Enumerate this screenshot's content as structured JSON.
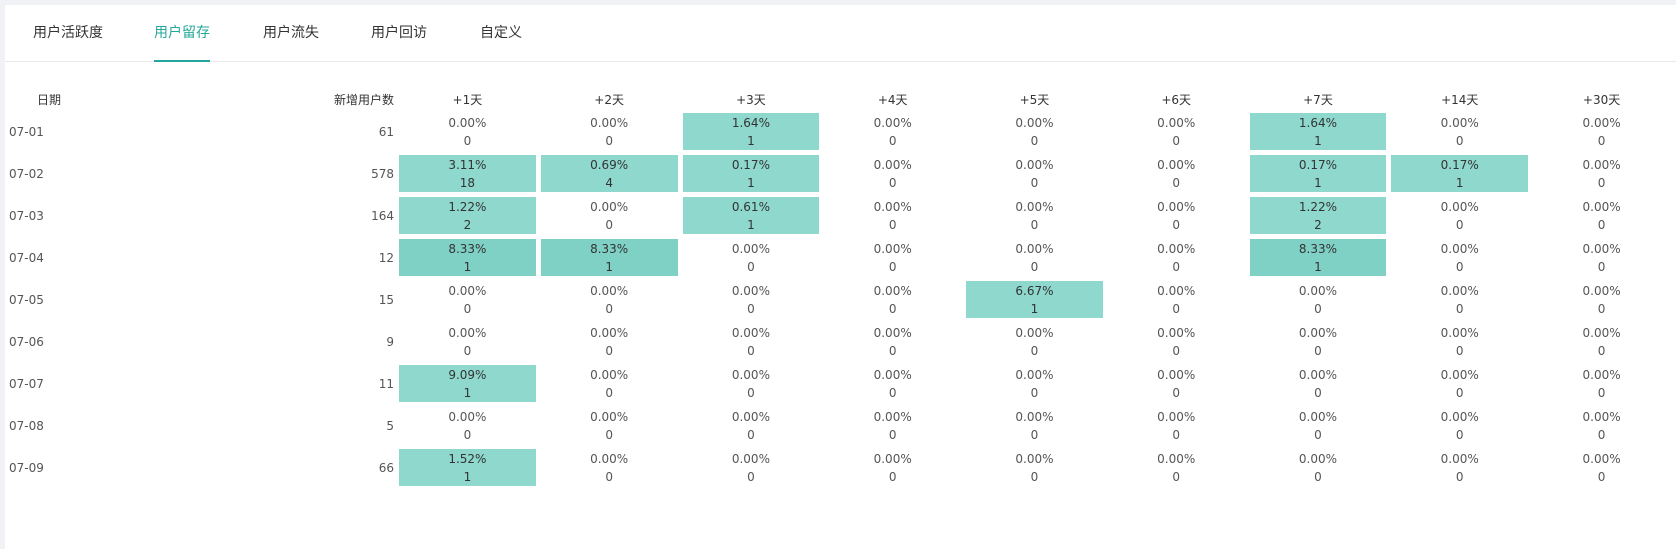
{
  "tabs": [
    {
      "label": "用户活跃度"
    },
    {
      "label": "用户留存"
    },
    {
      "label": "用户流失"
    },
    {
      "label": "用户回访"
    },
    {
      "label": "自定义"
    }
  ],
  "active_tab": 1,
  "table": {
    "headers": {
      "date": "日期",
      "new_users": "新增用户数",
      "days": [
        "+1天",
        "+2天",
        "+3天",
        "+4天",
        "+5天",
        "+6天",
        "+7天",
        "+14天",
        "+30天"
      ]
    },
    "rows": [
      {
        "date": "07-01",
        "new_users": "61",
        "cells": [
          {
            "pct": "0.00%",
            "count": "0"
          },
          {
            "pct": "0.00%",
            "count": "0"
          },
          {
            "pct": "1.64%",
            "count": "1"
          },
          {
            "pct": "0.00%",
            "count": "0"
          },
          {
            "pct": "0.00%",
            "count": "0"
          },
          {
            "pct": "0.00%",
            "count": "0"
          },
          {
            "pct": "1.64%",
            "count": "1"
          },
          {
            "pct": "0.00%",
            "count": "0"
          },
          {
            "pct": "0.00%",
            "count": "0"
          }
        ]
      },
      {
        "date": "07-02",
        "new_users": "578",
        "cells": [
          {
            "pct": "3.11%",
            "count": "18"
          },
          {
            "pct": "0.69%",
            "count": "4"
          },
          {
            "pct": "0.17%",
            "count": "1"
          },
          {
            "pct": "0.00%",
            "count": "0"
          },
          {
            "pct": "0.00%",
            "count": "0"
          },
          {
            "pct": "0.00%",
            "count": "0"
          },
          {
            "pct": "0.17%",
            "count": "1"
          },
          {
            "pct": "0.17%",
            "count": "1"
          },
          {
            "pct": "0.00%",
            "count": "0"
          }
        ]
      },
      {
        "date": "07-03",
        "new_users": "164",
        "cells": [
          {
            "pct": "1.22%",
            "count": "2"
          },
          {
            "pct": "0.00%",
            "count": "0"
          },
          {
            "pct": "0.61%",
            "count": "1"
          },
          {
            "pct": "0.00%",
            "count": "0"
          },
          {
            "pct": "0.00%",
            "count": "0"
          },
          {
            "pct": "0.00%",
            "count": "0"
          },
          {
            "pct": "1.22%",
            "count": "2"
          },
          {
            "pct": "0.00%",
            "count": "0"
          },
          {
            "pct": "0.00%",
            "count": "0"
          }
        ]
      },
      {
        "date": "07-04",
        "new_users": "12",
        "cells": [
          {
            "pct": "8.33%",
            "count": "1"
          },
          {
            "pct": "8.33%",
            "count": "1"
          },
          {
            "pct": "0.00%",
            "count": "0"
          },
          {
            "pct": "0.00%",
            "count": "0"
          },
          {
            "pct": "0.00%",
            "count": "0"
          },
          {
            "pct": "0.00%",
            "count": "0"
          },
          {
            "pct": "8.33%",
            "count": "1"
          },
          {
            "pct": "0.00%",
            "count": "0"
          },
          {
            "pct": "0.00%",
            "count": "0"
          }
        ]
      },
      {
        "date": "07-05",
        "new_users": "15",
        "cells": [
          {
            "pct": "0.00%",
            "count": "0"
          },
          {
            "pct": "0.00%",
            "count": "0"
          },
          {
            "pct": "0.00%",
            "count": "0"
          },
          {
            "pct": "0.00%",
            "count": "0"
          },
          {
            "pct": "6.67%",
            "count": "1"
          },
          {
            "pct": "0.00%",
            "count": "0"
          },
          {
            "pct": "0.00%",
            "count": "0"
          },
          {
            "pct": "0.00%",
            "count": "0"
          },
          {
            "pct": "0.00%",
            "count": "0"
          }
        ]
      },
      {
        "date": "07-06",
        "new_users": "9",
        "cells": [
          {
            "pct": "0.00%",
            "count": "0"
          },
          {
            "pct": "0.00%",
            "count": "0"
          },
          {
            "pct": "0.00%",
            "count": "0"
          },
          {
            "pct": "0.00%",
            "count": "0"
          },
          {
            "pct": "0.00%",
            "count": "0"
          },
          {
            "pct": "0.00%",
            "count": "0"
          },
          {
            "pct": "0.00%",
            "count": "0"
          },
          {
            "pct": "0.00%",
            "count": "0"
          },
          {
            "pct": "0.00%",
            "count": "0"
          }
        ]
      },
      {
        "date": "07-07",
        "new_users": "11",
        "cells": [
          {
            "pct": "9.09%",
            "count": "1"
          },
          {
            "pct": "0.00%",
            "count": "0"
          },
          {
            "pct": "0.00%",
            "count": "0"
          },
          {
            "pct": "0.00%",
            "count": "0"
          },
          {
            "pct": "0.00%",
            "count": "0"
          },
          {
            "pct": "0.00%",
            "count": "0"
          },
          {
            "pct": "0.00%",
            "count": "0"
          },
          {
            "pct": "0.00%",
            "count": "0"
          },
          {
            "pct": "0.00%",
            "count": "0"
          }
        ]
      },
      {
        "date": "07-08",
        "new_users": "5",
        "cells": [
          {
            "pct": "0.00%",
            "count": "0"
          },
          {
            "pct": "0.00%",
            "count": "0"
          },
          {
            "pct": "0.00%",
            "count": "0"
          },
          {
            "pct": "0.00%",
            "count": "0"
          },
          {
            "pct": "0.00%",
            "count": "0"
          },
          {
            "pct": "0.00%",
            "count": "0"
          },
          {
            "pct": "0.00%",
            "count": "0"
          },
          {
            "pct": "0.00%",
            "count": "0"
          },
          {
            "pct": "0.00%",
            "count": "0"
          }
        ]
      },
      {
        "date": "07-09",
        "new_users": "66",
        "cells": [
          {
            "pct": "1.52%",
            "count": "1"
          },
          {
            "pct": "0.00%",
            "count": "0"
          },
          {
            "pct": "0.00%",
            "count": "0"
          },
          {
            "pct": "0.00%",
            "count": "0"
          },
          {
            "pct": "0.00%",
            "count": "0"
          },
          {
            "pct": "0.00%",
            "count": "0"
          },
          {
            "pct": "0.00%",
            "count": "0"
          },
          {
            "pct": "0.00%",
            "count": "0"
          },
          {
            "pct": "0.00%",
            "count": "0"
          }
        ]
      }
    ]
  },
  "colors": {
    "accent": "#26a69a",
    "highlight": "#8ed8cd"
  }
}
